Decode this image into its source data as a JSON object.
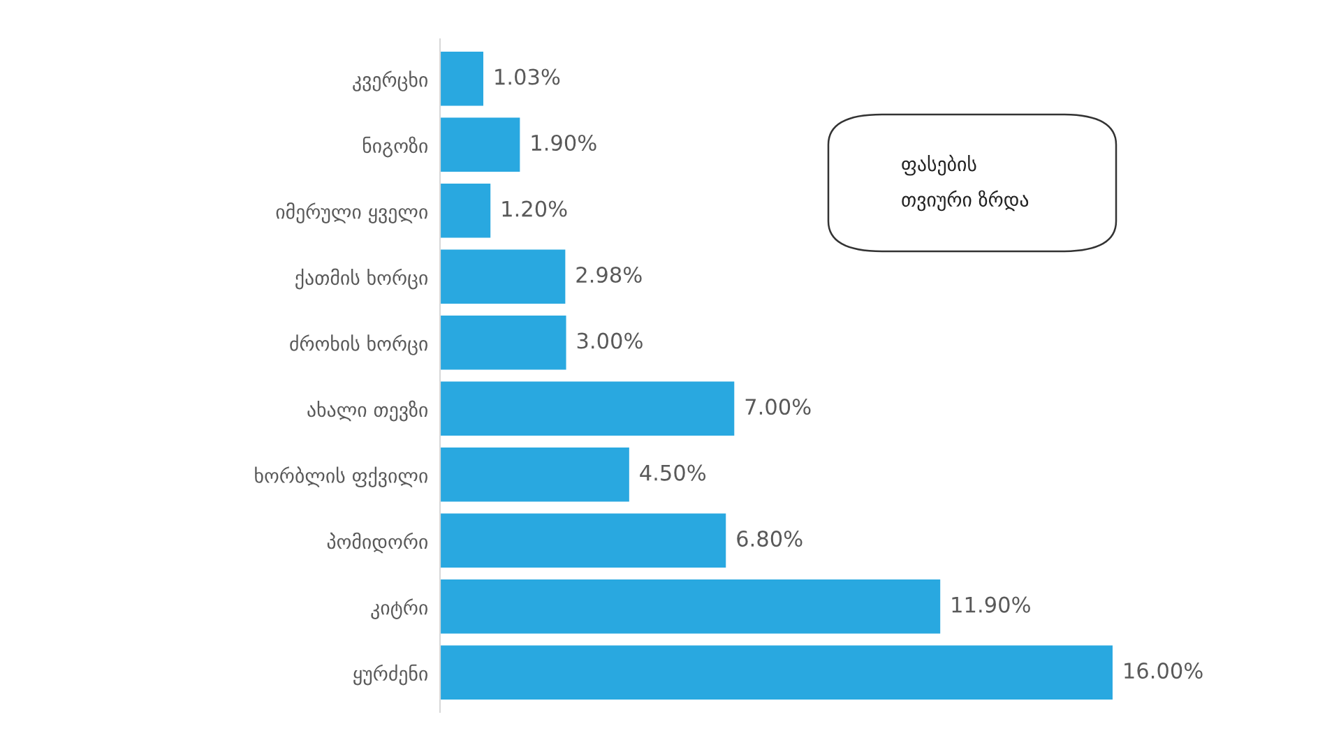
{
  "chart_data": {
    "type": "bar",
    "orientation": "horizontal",
    "title": "ფასების\nთვიური ზრდა",
    "categories": [
      "კვერცხი",
      "ნიგოზი",
      "იმერული ყველი",
      "ქათმის ხორცი",
      "ძროხის ხორცი",
      "ახალი თევზი",
      "ხორბლის ფქვილი",
      "პომიდორი",
      "კიტრი",
      "ყურძენი"
    ],
    "values": [
      1.03,
      1.9,
      1.2,
      2.98,
      3.0,
      7.0,
      4.5,
      6.8,
      11.9,
      16.0
    ],
    "value_labels": [
      "1.03%",
      "1.90%",
      "1.20%",
      "2.98%",
      "3.00%",
      "7.00%",
      "4.50%",
      "6.80%",
      "11.90%",
      "16.00%"
    ],
    "color": "#29a8e0",
    "tick_labels": "y",
    "grid": false
  }
}
